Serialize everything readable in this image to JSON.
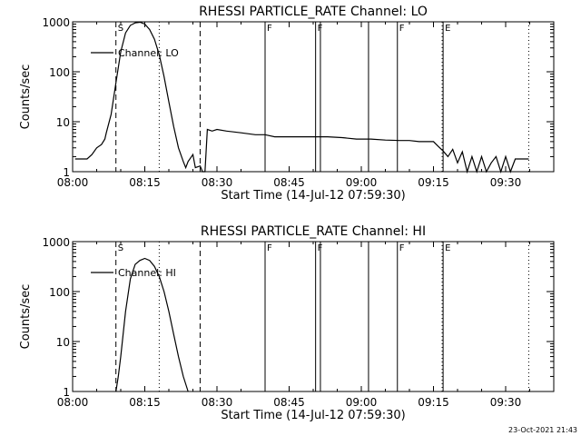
{
  "footer": {
    "stamp": "23-Oct-2021 21:43"
  },
  "chart_data": [
    {
      "type": "line",
      "title": "RHESSI PARTICLE_RATE Channel: LO",
      "xlabel": "Start Time (14-Jul-12 07:59:30)",
      "ylabel": "Counts/sec",
      "xlim_min": [
        0,
        100
      ],
      "ylim": [
        1,
        1000
      ],
      "yscale": "log",
      "x_tick_labels": [
        "08:00",
        "08:15",
        "08:30",
        "08:45",
        "09:00",
        "09:15",
        "09:30"
      ],
      "x_tick_values_min": [
        0,
        15,
        30,
        45,
        60,
        75,
        90
      ],
      "y_tick_labels": [
        "1",
        "10",
        "100",
        "1000"
      ],
      "y_tick_values": [
        1,
        10,
        100,
        1000
      ],
      "grid": false,
      "legend": {
        "position": "top-left",
        "entries": [
          "Channel: LO"
        ]
      },
      "series": [
        {
          "name": "Channel: LO",
          "x_min": [
            0.5,
            3,
            4,
            5,
            6,
            6.7,
            7,
            8,
            9,
            10,
            11,
            12,
            13,
            14,
            15,
            16,
            17,
            18,
            19,
            20,
            21,
            22,
            23,
            23.5,
            24,
            25,
            25.5,
            26.5,
            27,
            27.5,
            28,
            29,
            30,
            32,
            35,
            38,
            40,
            42,
            45,
            47,
            50,
            53,
            56,
            59,
            62,
            65,
            68,
            70,
            72,
            75,
            76,
            77,
            78,
            79,
            80,
            81,
            82,
            83,
            84,
            85,
            86,
            87,
            88,
            89,
            90,
            91,
            92,
            93,
            94,
            94.8
          ],
          "values": [
            1.8,
            1.8,
            2.2,
            3,
            3.5,
            4.5,
            6,
            14,
            60,
            250,
            600,
            850,
            950,
            980,
            900,
            700,
            450,
            220,
            80,
            25,
            8,
            3,
            1.6,
            1.2,
            1.6,
            2.2,
            1.2,
            1.3,
            1,
            1,
            7,
            6.5,
            7,
            6.5,
            6,
            5.5,
            5.5,
            5,
            5,
            5,
            5,
            5,
            4.8,
            4.5,
            4.5,
            4.3,
            4.2,
            4.2,
            4,
            4,
            3.2,
            2.6,
            2,
            2.8,
            1.5,
            2.5,
            1,
            2,
            1,
            2,
            1,
            1.5,
            2,
            1,
            2,
            1,
            1.8,
            1.8,
            1.8,
            1.8
          ]
        }
      ],
      "annotations": [
        {
          "label": "S",
          "x_min": 9,
          "style": "dashed"
        },
        {
          "label": "",
          "x_min": 26.5,
          "style": "dashed"
        },
        {
          "label": "",
          "x_min": 18,
          "style": "dotted"
        },
        {
          "label": "F",
          "x_min": 40,
          "style": "solid"
        },
        {
          "label": "F",
          "x_min": 50.5,
          "style": "solid"
        },
        {
          "label": "",
          "x_min": 51.5,
          "style": "solid"
        },
        {
          "label": "",
          "x_min": 61.5,
          "style": "solid"
        },
        {
          "label": "F",
          "x_min": 67.5,
          "style": "solid"
        },
        {
          "label": "E",
          "x_min": 77,
          "style": "solid"
        },
        {
          "label": "",
          "x_min": 76.8,
          "style": "dotted"
        },
        {
          "label": "",
          "x_min": 94.8,
          "style": "dotted"
        }
      ]
    },
    {
      "type": "line",
      "title": "RHESSI PARTICLE_RATE Channel: HI",
      "xlabel": "Start Time (14-Jul-12 07:59:30)",
      "ylabel": "Counts/sec",
      "xlim_min": [
        0,
        100
      ],
      "ylim": [
        1,
        1000
      ],
      "yscale": "log",
      "x_tick_labels": [
        "08:00",
        "08:15",
        "08:30",
        "08:45",
        "09:00",
        "09:15",
        "09:30"
      ],
      "x_tick_values_min": [
        0,
        15,
        30,
        45,
        60,
        75,
        90
      ],
      "y_tick_labels": [
        "1",
        "10",
        "100",
        "1000"
      ],
      "y_tick_values": [
        1,
        10,
        100,
        1000
      ],
      "grid": false,
      "legend": {
        "position": "top-left",
        "entries": [
          "Channel: HI"
        ]
      },
      "series": [
        {
          "name": "Channel: HI",
          "x_min": [
            9,
            9.5,
            10,
            11,
            12,
            13,
            14,
            15,
            16,
            17,
            18,
            19,
            20,
            21,
            22,
            23,
            24
          ],
          "values": [
            1,
            2,
            5,
            40,
            180,
            350,
            420,
            460,
            420,
            320,
            200,
            100,
            40,
            14,
            5,
            2,
            1
          ]
        }
      ],
      "annotations": [
        {
          "label": "S",
          "x_min": 9,
          "style": "dashed"
        },
        {
          "label": "",
          "x_min": 26.5,
          "style": "dashed"
        },
        {
          "label": "",
          "x_min": 18,
          "style": "dotted"
        },
        {
          "label": "F",
          "x_min": 40,
          "style": "solid"
        },
        {
          "label": "F",
          "x_min": 50.5,
          "style": "solid"
        },
        {
          "label": "",
          "x_min": 51.5,
          "style": "solid"
        },
        {
          "label": "",
          "x_min": 61.5,
          "style": "solid"
        },
        {
          "label": "F",
          "x_min": 67.5,
          "style": "solid"
        },
        {
          "label": "E",
          "x_min": 77,
          "style": "solid"
        },
        {
          "label": "",
          "x_min": 76.8,
          "style": "dotted"
        },
        {
          "label": "",
          "x_min": 94.8,
          "style": "dotted"
        }
      ]
    }
  ]
}
